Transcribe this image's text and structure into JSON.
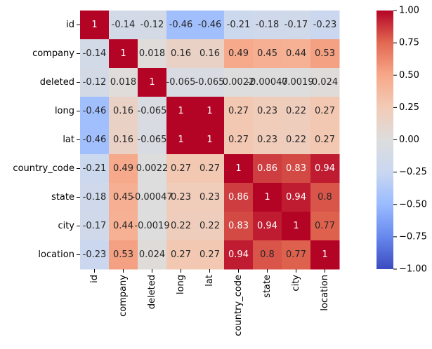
{
  "chart_data": {
    "type": "heatmap",
    "title": "",
    "xlabel": "",
    "ylabel": "",
    "labels": [
      "id",
      "company",
      "deleted",
      "long",
      "lat",
      "country_code",
      "state",
      "city",
      "location"
    ],
    "matrix": [
      [
        1,
        -0.14,
        -0.12,
        -0.46,
        -0.46,
        -0.21,
        -0.18,
        -0.17,
        -0.23
      ],
      [
        -0.14,
        1,
        0.018,
        0.16,
        0.16,
        0.49,
        0.45,
        0.44,
        0.53
      ],
      [
        -0.12,
        0.018,
        1,
        -0.065,
        -0.065,
        0.0022,
        -0.00047,
        -0.0019,
        0.024
      ],
      [
        -0.46,
        0.16,
        -0.065,
        1,
        1,
        0.27,
        0.23,
        0.22,
        0.27
      ],
      [
        -0.46,
        0.16,
        -0.065,
        1,
        1,
        0.27,
        0.23,
        0.22,
        0.27
      ],
      [
        -0.21,
        0.49,
        0.0022,
        0.27,
        0.27,
        1,
        0.86,
        0.83,
        0.94
      ],
      [
        -0.18,
        0.45,
        -0.00047,
        0.23,
        0.23,
        0.86,
        1,
        0.94,
        0.8
      ],
      [
        -0.17,
        0.44,
        -0.0019,
        0.22,
        0.22,
        0.83,
        0.94,
        1,
        0.77
      ],
      [
        -0.23,
        0.53,
        0.024,
        0.27,
        0.27,
        0.94,
        0.8,
        0.77,
        1
      ]
    ],
    "annotations": [
      [
        "1",
        "-0.14",
        "-0.12",
        "-0.46",
        "-0.46",
        "-0.21",
        "-0.18",
        "-0.17",
        "-0.23"
      ],
      [
        "-0.14",
        "1",
        "0.018",
        "0.16",
        "0.16",
        "0.49",
        "0.45",
        "0.44",
        "0.53"
      ],
      [
        "-0.12",
        "0.018",
        "1",
        "-0.065",
        "-0.065",
        "0.0022",
        "-0.00047",
        "-0.0019",
        "0.024"
      ],
      [
        "-0.46",
        "0.16",
        "-0.065",
        "1",
        "1",
        "0.27",
        "0.23",
        "0.22",
        "0.27"
      ],
      [
        "-0.46",
        "0.16",
        "-0.065",
        "1",
        "1",
        "0.27",
        "0.23",
        "0.22",
        "0.27"
      ],
      [
        "-0.21",
        "0.49",
        "0.0022",
        "0.27",
        "0.27",
        "1",
        "0.86",
        "0.83",
        "0.94"
      ],
      [
        "-0.18",
        "0.45",
        "-0.00047",
        "0.23",
        "0.23",
        "0.86",
        "1",
        "0.94",
        "0.8"
      ],
      [
        "-0.17",
        "0.44",
        "-0.0019",
        "0.22",
        "0.22",
        "0.83",
        "0.94",
        "1",
        "0.77"
      ],
      [
        "-0.23",
        "0.53",
        "0.024",
        "0.27",
        "0.27",
        "0.94",
        "0.8",
        "0.77",
        "1"
      ]
    ],
    "colormap": "coolwarm",
    "vmin": -1,
    "vmax": 1,
    "colorbar_ticks": [
      1.0,
      0.75,
      0.5,
      0.25,
      0.0,
      -0.25,
      -0.5,
      -0.75,
      -1.0
    ],
    "colorbar_tick_labels": [
      "1.00",
      "0.75",
      "0.50",
      "0.25",
      "0.00",
      "−0.25",
      "−0.50",
      "−0.75",
      "−1.00"
    ],
    "colormap_stops": [
      "#3b4cc0",
      "#6788ee",
      "#9abbff",
      "#c9d7f0",
      "#dddddd",
      "#f2cbb7",
      "#f7a889",
      "#e26952",
      "#b40426"
    ]
  }
}
